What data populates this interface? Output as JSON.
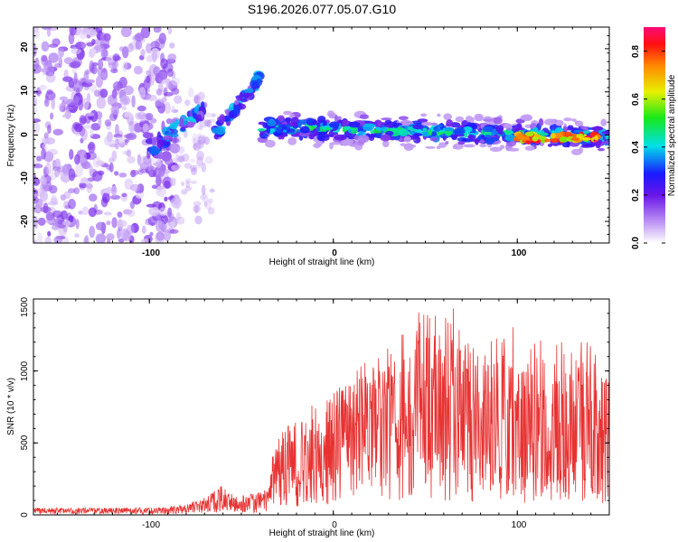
{
  "title": "S196.2026.077.05.07.G10",
  "colors": {
    "snr_line": "#e83232",
    "axis": "#000000"
  },
  "chart_data": [
    {
      "type": "heatmap",
      "title": "S196.2026.077.05.07.G10",
      "xlabel": "Height of straight line (km)",
      "ylabel": "Frequency (Hz)",
      "xlim": [
        -163,
        150
      ],
      "ylim": [
        -25,
        25
      ],
      "xticks": [
        "-100",
        "0",
        "100"
      ],
      "yticks": [
        "20",
        "10",
        "0",
        "-10",
        "-20"
      ],
      "colorbar": {
        "label": "Normalized spectral amplitude",
        "range": [
          0.0,
          0.9
        ],
        "ticks": [
          "0.0",
          "0.2",
          "0.4",
          "0.6",
          "0.8"
        ]
      },
      "features": [
        {
          "name": "noise",
          "x_range": [
            -163,
            -85
          ],
          "freq_range": [
            -25,
            25
          ],
          "amplitude": 0.05
        },
        {
          "name": "ridge-1",
          "x_range": [
            -100,
            -70
          ],
          "freq_range": [
            -3,
            6
          ],
          "amplitude": 0.3
        },
        {
          "name": "ridge-2",
          "x_range": [
            -65,
            -40
          ],
          "freq_range": [
            0,
            13
          ],
          "amplitude": 0.3
        },
        {
          "name": "main-band",
          "x_range": [
            -40,
            150
          ],
          "freq_range": [
            -1.5,
            3
          ],
          "amplitude": 0.4
        },
        {
          "name": "strong-segment",
          "x_range": [
            100,
            145
          ],
          "freq_range": [
            -2,
            1
          ],
          "amplitude": 0.85
        }
      ]
    },
    {
      "type": "line",
      "xlabel": "Height of straight line (km)",
      "ylabel": "SNR (10 * v/v)",
      "xlim": [
        -163,
        150
      ],
      "ylim": [
        0,
        1500
      ],
      "xticks": [
        "-100",
        "0",
        "100"
      ],
      "yticks": [
        "0",
        "500",
        "1000",
        "1500"
      ],
      "envelope": {
        "x": [
          -163,
          -100,
          -80,
          -70,
          -62,
          -55,
          -45,
          -35,
          -33,
          -20,
          0,
          20,
          40,
          47,
          60,
          80,
          100,
          120,
          140,
          150
        ],
        "mean": [
          30,
          30,
          40,
          70,
          120,
          80,
          70,
          110,
          280,
          380,
          500,
          560,
          600,
          650,
          650,
          600,
          550,
          550,
          520,
          520
        ],
        "peak": [
          50,
          50,
          70,
          130,
          220,
          150,
          150,
          180,
          500,
          700,
          850,
          1100,
          1350,
          1500,
          1450,
          1400,
          1300,
          1200,
          1200,
          1150
        ]
      }
    }
  ]
}
